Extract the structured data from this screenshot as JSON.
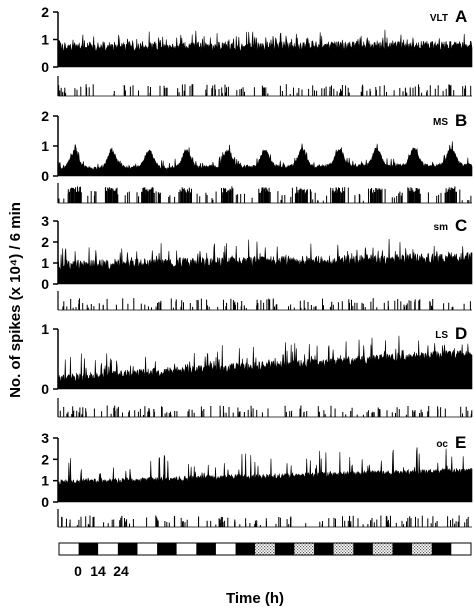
{
  "chart_data": {
    "type": "bar",
    "ylabel": "No. of spikes (x 10⁴) / 6 min",
    "xlabel": "Time (h)",
    "x_tick_labels": [
      "0",
      "14",
      "24"
    ],
    "grid": false,
    "colors": {
      "trace": "#000000",
      "background": "#ffffff",
      "dark_period": "#000000",
      "stippled_period": "#aaaaaa"
    },
    "panels": [
      {
        "letter": "A",
        "region": "VLT",
        "ylim": [
          0,
          2
        ],
        "yticks": [
          "0",
          "1",
          "2"
        ],
        "baseline": 0.55,
        "trend": 0.05,
        "noise": 0.35,
        "spikiness": 0.45,
        "burst_centers": []
      },
      {
        "letter": "B",
        "region": "MS",
        "ylim": [
          0,
          2
        ],
        "yticks": [
          "0",
          "1",
          "2"
        ],
        "baseline": 0.2,
        "trend": 0.1,
        "noise": 0.12,
        "spikiness": 0.25,
        "burst_centers": [
          0.04,
          0.13,
          0.22,
          0.31,
          0.41,
          0.5,
          0.59,
          0.68,
          0.77,
          0.86,
          0.95
        ]
      },
      {
        "letter": "C",
        "region": "sm",
        "ylim": [
          0,
          3
        ],
        "yticks": [
          "0",
          "1",
          "2",
          "3"
        ],
        "baseline": 0.65,
        "trend": 0.35,
        "noise": 0.5,
        "spikiness": 0.9,
        "burst_centers": []
      },
      {
        "letter": "D",
        "region": "LS",
        "ylim": [
          0,
          1
        ],
        "yticks": [
          "0",
          "1"
        ],
        "baseline": 0.1,
        "trend": 0.42,
        "noise": 0.15,
        "spikiness": 0.35,
        "burst_centers": []
      },
      {
        "letter": "E",
        "region": "oc",
        "ylim": [
          0,
          3
        ],
        "yticks": [
          "0",
          "1",
          "2",
          "3"
        ],
        "baseline": 0.8,
        "trend": 0.55,
        "noise": 0.25,
        "spikiness": 1.2,
        "burst_centers": []
      }
    ],
    "light_dark_bar": [
      "light",
      "dark",
      "light",
      "dark",
      "light",
      "dark",
      "light",
      "dark",
      "light",
      "dark",
      "stippled",
      "dark",
      "stippled",
      "dark",
      "stippled",
      "dark",
      "stippled",
      "dark",
      "stippled",
      "dark",
      "light"
    ]
  }
}
